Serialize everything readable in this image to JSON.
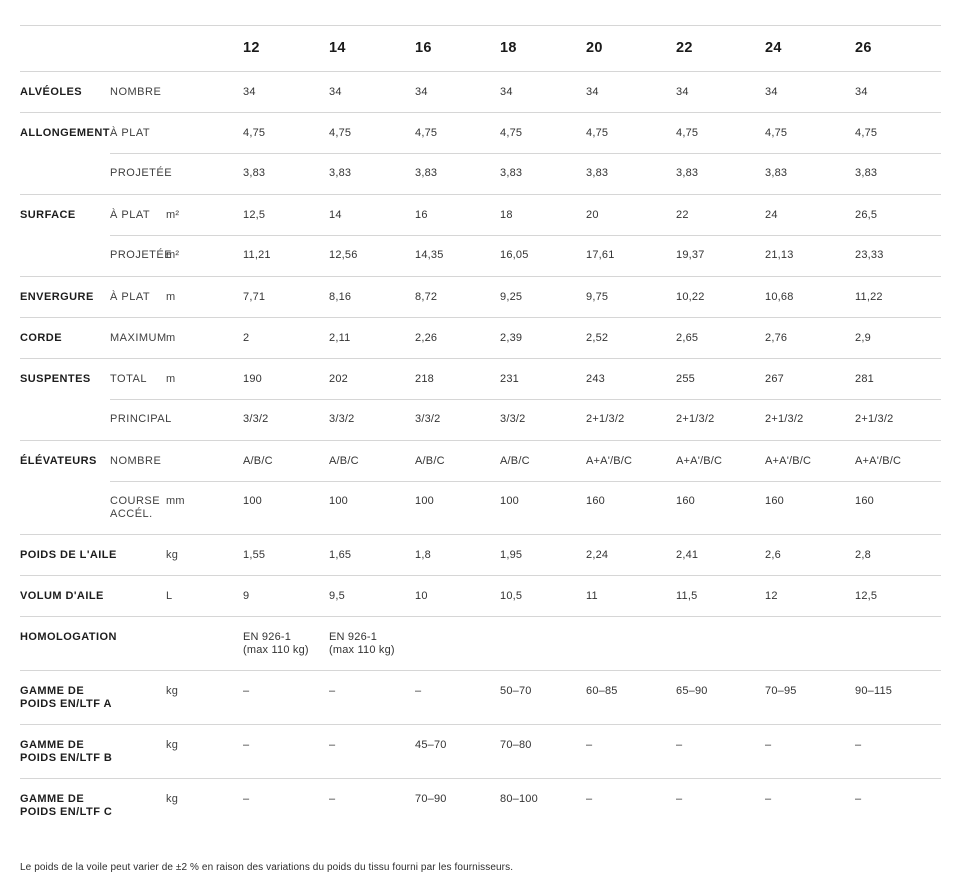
{
  "colors": {
    "text": "#1c1c1c",
    "sublabel": "#3f3f3f",
    "value": "#333333",
    "line": "#d6d6d6",
    "footnote": "#2d2d2d"
  },
  "page": {
    "footnote": "Le poids de la voile peut varier de ±2 % en raison des variations du poids du tissu fourni par les fournisseurs."
  },
  "table": {
    "sizes": [
      "12",
      "14",
      "16",
      "18",
      "20",
      "22",
      "24",
      "26"
    ],
    "rows": [
      {
        "group": "ALVÉOLES",
        "label": "NOMBRE",
        "unit": "",
        "partial": false,
        "values": [
          "34",
          "34",
          "34",
          "34",
          "34",
          "34",
          "34",
          "34"
        ]
      },
      {
        "group": "ALLONGEMENT",
        "label": "À PLAT",
        "unit": "",
        "partial": false,
        "values": [
          "4,75",
          "4,75",
          "4,75",
          "4,75",
          "4,75",
          "4,75",
          "4,75",
          "4,75"
        ]
      },
      {
        "group": "",
        "label": "PROJETÉE",
        "unit": "",
        "partial": true,
        "values": [
          "3,83",
          "3,83",
          "3,83",
          "3,83",
          "3,83",
          "3,83",
          "3,83",
          "3,83"
        ]
      },
      {
        "group": "SURFACE",
        "label": "À PLAT",
        "unit": "m²",
        "partial": false,
        "values": [
          "12,5",
          "14",
          "16",
          "18",
          "20",
          "22",
          "24",
          "26,5"
        ]
      },
      {
        "group": "",
        "label": "PROJETÉE",
        "unit": "m²",
        "partial": true,
        "values": [
          "11,21",
          "12,56",
          "14,35",
          "16,05",
          "17,61",
          "19,37",
          "21,13",
          "23,33"
        ]
      },
      {
        "group": "ENVERGURE",
        "label": "À PLAT",
        "unit": "m",
        "partial": false,
        "values": [
          "7,71",
          "8,16",
          "8,72",
          "9,25",
          "9,75",
          "10,22",
          "10,68",
          "11,22"
        ]
      },
      {
        "group": "CORDE",
        "label": "MAXIMUM",
        "unit": "m",
        "partial": false,
        "values": [
          "2",
          "2,11",
          "2,26",
          "2,39",
          "2,52",
          "2,65",
          "2,76",
          "2,9"
        ]
      },
      {
        "group": "SUSPENTES",
        "label": "TOTAL",
        "unit": "m",
        "partial": false,
        "values": [
          "190",
          "202",
          "218",
          "231",
          "243",
          "255",
          "267",
          "281"
        ]
      },
      {
        "group": "",
        "label": "PRINCIPAL",
        "unit": "",
        "partial": true,
        "values": [
          "3/3/2",
          "3/3/2",
          "3/3/2",
          "3/3/2",
          "2+1/3/2",
          "2+1/3/2",
          "2+1/3/2",
          "2+1/3/2"
        ]
      },
      {
        "group": "ÉLÉVATEURS",
        "label": "NOMBRE",
        "unit": "",
        "partial": false,
        "values": [
          "A/B/C",
          "A/B/C",
          "A/B/C",
          "A/B/C",
          "A+A'/B/C",
          "A+A'/B/C",
          "A+A'/B/C",
          "A+A'/B/C"
        ]
      },
      {
        "group": "",
        "label": "COURSE\nACCÉL.",
        "unit": "mm",
        "partial": true,
        "values": [
          "100",
          "100",
          "100",
          "100",
          "160",
          "160",
          "160",
          "160"
        ]
      },
      {
        "group": "POIDS DE L'AILE",
        "label": "",
        "unit": "kg",
        "partial": false,
        "values": [
          "1,55",
          "1,65",
          "1,8",
          "1,95",
          "2,24",
          "2,41",
          "2,6",
          "2,8"
        ]
      },
      {
        "group": "VOLUM D'AILE",
        "label": "",
        "unit": "L",
        "partial": false,
        "values": [
          "9",
          "9,5",
          "10",
          "10,5",
          "11",
          "11,5",
          "12",
          "12,5"
        ]
      },
      {
        "group": "HOMOLOGATION",
        "label": "",
        "unit": "",
        "partial": false,
        "values": [
          "EN 926-1\n(max 110 kg)",
          "EN 926-1\n(max 110 kg)",
          "",
          "",
          "",
          "",
          "",
          ""
        ]
      },
      {
        "group": "GAMME DE\nPOIDS EN/LTF A",
        "label": "",
        "unit": "kg",
        "partial": false,
        "values": [
          "–",
          "–",
          "–",
          "50–70",
          "60–85",
          "65–90",
          "70–95",
          "90–115"
        ]
      },
      {
        "group": "GAMME DE\nPOIDS EN/LTF B",
        "label": "",
        "unit": "kg",
        "partial": false,
        "values": [
          "–",
          "–",
          "45–70",
          "70–80",
          "–",
          "–",
          "–",
          "–"
        ]
      },
      {
        "group": "GAMME DE\nPOIDS EN/LTF C",
        "label": "",
        "unit": "kg",
        "partial": false,
        "values": [
          "–",
          "–",
          "70–90",
          "80–100",
          "–",
          "–",
          "–",
          "–"
        ]
      }
    ]
  }
}
